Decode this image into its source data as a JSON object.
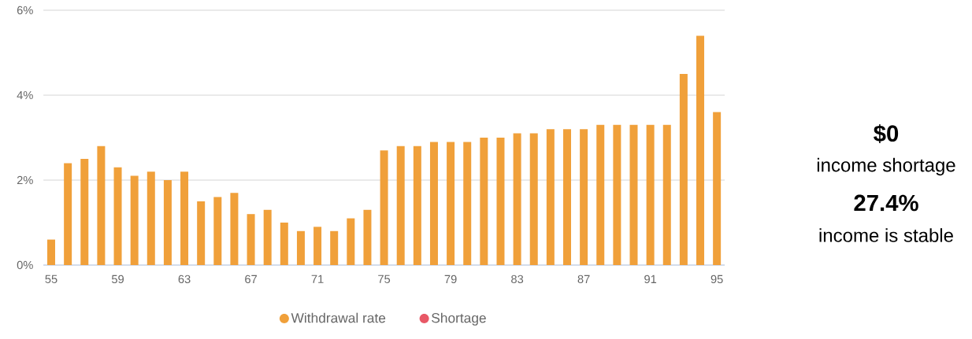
{
  "chart_data": {
    "type": "bar",
    "categories": [
      "55",
      null,
      null,
      null,
      "59",
      null,
      null,
      null,
      "63",
      null,
      null,
      null,
      "67",
      null,
      null,
      null,
      "71",
      null,
      null,
      null,
      "75",
      null,
      null,
      null,
      "79",
      null,
      null,
      null,
      "83",
      null,
      null,
      null,
      "87",
      null,
      null,
      null,
      "91",
      null,
      null,
      null,
      "95"
    ],
    "series": [
      {
        "name": "Withdrawal rate",
        "color": "#f0a03a",
        "values": [
          0.6,
          2.4,
          2.5,
          2.8,
          2.3,
          2.1,
          2.2,
          2.0,
          2.2,
          1.5,
          1.6,
          1.7,
          1.2,
          1.3,
          1.0,
          0.8,
          0.9,
          0.8,
          1.1,
          1.3,
          2.7,
          2.8,
          2.8,
          2.9,
          2.9,
          2.9,
          3.0,
          3.0,
          3.1,
          3.1,
          3.2,
          3.2,
          3.2,
          3.3,
          3.3,
          3.3,
          3.3,
          3.3,
          4.5,
          5.4,
          3.6
        ]
      },
      {
        "name": "Shortage",
        "color": "#e85866",
        "values": [
          0,
          0,
          0,
          0,
          0,
          0,
          0,
          0,
          0,
          0,
          0,
          0,
          0,
          0,
          0,
          0,
          0,
          0,
          0,
          0,
          0,
          0,
          0,
          0,
          0,
          0,
          0,
          0,
          0,
          0,
          0,
          0,
          0,
          0,
          0,
          0,
          0,
          0,
          0,
          0,
          0
        ]
      }
    ],
    "ylim": [
      0,
      6
    ],
    "yticks": [
      {
        "value": 0,
        "label": "0%"
      },
      {
        "value": 2,
        "label": "2%"
      },
      {
        "value": 4,
        "label": "4%"
      },
      {
        "value": 6,
        "label": "6%"
      }
    ],
    "grid": "y",
    "legend": "bottom",
    "annotations": [
      "$0",
      "income shortage",
      "27.4%",
      "income is stable"
    ]
  }
}
